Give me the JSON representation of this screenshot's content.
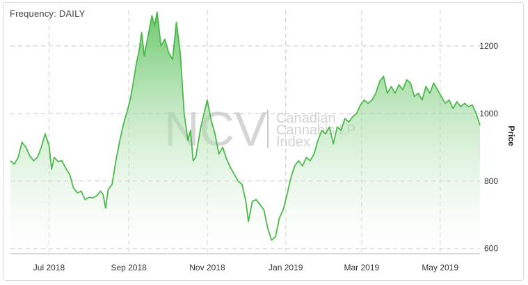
{
  "header": {
    "frequency_label": "Frequency: DAILY"
  },
  "watermark": {
    "logo_text": "NCV",
    "line1": "Canadian",
    "line2": "Cannabis LP",
    "line3": "Index"
  },
  "colors": {
    "line": "#4cb84c",
    "fill_top": "#5cc25c",
    "fill_bottom": "#ffffff",
    "grid": "#c8c8c8"
  },
  "chart_data": {
    "type": "area",
    "ylabel": "Price",
    "ylim": [
      585,
      1305
    ],
    "yticks": [
      600,
      800,
      1000,
      1200
    ],
    "xticks": [
      {
        "date": "2018-07-01",
        "label": "Jul 2018"
      },
      {
        "date": "2018-09-01",
        "label": "Sep 2018"
      },
      {
        "date": "2018-11-01",
        "label": "Nov 2018"
      },
      {
        "date": "2019-01-01",
        "label": "Jan 2019"
      },
      {
        "date": "2019-03-01",
        "label": "Mar 2019"
      },
      {
        "date": "2019-05-01",
        "label": "May 2019"
      }
    ],
    "xlim": [
      "2018-06-01",
      "2019-06-01"
    ],
    "grid": true,
    "series": [
      {
        "points": [
          [
            "2018-06-01",
            860
          ],
          [
            "2018-06-04",
            850
          ],
          [
            "2018-06-07",
            870
          ],
          [
            "2018-06-10",
            915
          ],
          [
            "2018-06-13",
            900
          ],
          [
            "2018-06-16",
            875
          ],
          [
            "2018-06-19",
            860
          ],
          [
            "2018-06-22",
            870
          ],
          [
            "2018-06-25",
            900
          ],
          [
            "2018-06-28",
            940
          ],
          [
            "2018-07-01",
            905
          ],
          [
            "2018-07-03",
            835
          ],
          [
            "2018-07-05",
            870
          ],
          [
            "2018-07-08",
            858
          ],
          [
            "2018-07-11",
            860
          ],
          [
            "2018-07-14",
            838
          ],
          [
            "2018-07-17",
            820
          ],
          [
            "2018-07-20",
            780
          ],
          [
            "2018-07-23",
            765
          ],
          [
            "2018-07-26",
            770
          ],
          [
            "2018-07-29",
            745
          ],
          [
            "2018-08-01",
            752
          ],
          [
            "2018-08-04",
            750
          ],
          [
            "2018-08-07",
            756
          ],
          [
            "2018-08-10",
            770
          ],
          [
            "2018-08-12",
            760
          ],
          [
            "2018-08-14",
            720
          ],
          [
            "2018-08-16",
            775
          ],
          [
            "2018-08-19",
            790
          ],
          [
            "2018-08-22",
            860
          ],
          [
            "2018-08-25",
            920
          ],
          [
            "2018-08-28",
            970
          ],
          [
            "2018-08-31",
            1010
          ],
          [
            "2018-09-02",
            1040
          ],
          [
            "2018-09-04",
            1080
          ],
          [
            "2018-09-07",
            1150
          ],
          [
            "2018-09-09",
            1185
          ],
          [
            "2018-09-11",
            1240
          ],
          [
            "2018-09-13",
            1170
          ],
          [
            "2018-09-15",
            1210
          ],
          [
            "2018-09-17",
            1250
          ],
          [
            "2018-09-19",
            1290
          ],
          [
            "2018-09-21",
            1260
          ],
          [
            "2018-09-23",
            1300
          ],
          [
            "2018-09-26",
            1200
          ],
          [
            "2018-09-29",
            1220
          ],
          [
            "2018-10-02",
            1180
          ],
          [
            "2018-10-05",
            1160
          ],
          [
            "2018-10-08",
            1270
          ],
          [
            "2018-10-11",
            1180
          ],
          [
            "2018-10-14",
            1000
          ],
          [
            "2018-10-17",
            920
          ],
          [
            "2018-10-19",
            950
          ],
          [
            "2018-10-21",
            860
          ],
          [
            "2018-10-23",
            870
          ],
          [
            "2018-10-27",
            960
          ],
          [
            "2018-11-01",
            1040
          ],
          [
            "2018-11-04",
            980
          ],
          [
            "2018-11-07",
            940
          ],
          [
            "2018-11-10",
            880
          ],
          [
            "2018-11-13",
            900
          ],
          [
            "2018-11-16",
            865
          ],
          [
            "2018-11-19",
            840
          ],
          [
            "2018-11-22",
            820
          ],
          [
            "2018-11-25",
            800
          ],
          [
            "2018-11-28",
            790
          ],
          [
            "2018-12-01",
            740
          ],
          [
            "2018-12-03",
            680
          ],
          [
            "2018-12-06",
            740
          ],
          [
            "2018-12-09",
            745
          ],
          [
            "2018-12-12",
            730
          ],
          [
            "2018-12-15",
            715
          ],
          [
            "2018-12-18",
            660
          ],
          [
            "2018-12-21",
            625
          ],
          [
            "2018-12-24",
            635
          ],
          [
            "2018-12-27",
            690
          ],
          [
            "2018-12-30",
            715
          ],
          [
            "2019-01-02",
            760
          ],
          [
            "2019-01-05",
            810
          ],
          [
            "2019-01-08",
            845
          ],
          [
            "2019-01-11",
            860
          ],
          [
            "2019-01-14",
            845
          ],
          [
            "2019-01-17",
            870
          ],
          [
            "2019-01-20",
            860
          ],
          [
            "2019-01-23",
            880
          ],
          [
            "2019-01-26",
            920
          ],
          [
            "2019-01-29",
            950
          ],
          [
            "2019-02-01",
            940
          ],
          [
            "2019-02-04",
            960
          ],
          [
            "2019-02-07",
            910
          ],
          [
            "2019-02-10",
            960
          ],
          [
            "2019-02-13",
            950
          ],
          [
            "2019-02-16",
            985
          ],
          [
            "2019-02-19",
            975
          ],
          [
            "2019-02-22",
            990
          ],
          [
            "2019-02-25",
            1000
          ],
          [
            "2019-02-28",
            1025
          ],
          [
            "2019-03-03",
            1040
          ],
          [
            "2019-03-06",
            1030
          ],
          [
            "2019-03-09",
            1040
          ],
          [
            "2019-03-12",
            1060
          ],
          [
            "2019-03-15",
            1095
          ],
          [
            "2019-03-18",
            1110
          ],
          [
            "2019-03-21",
            1060
          ],
          [
            "2019-03-24",
            1080
          ],
          [
            "2019-03-27",
            1060
          ],
          [
            "2019-03-30",
            1085
          ],
          [
            "2019-04-02",
            1070
          ],
          [
            "2019-04-05",
            1100
          ],
          [
            "2019-04-08",
            1090
          ],
          [
            "2019-04-11",
            1050
          ],
          [
            "2019-04-14",
            1060
          ],
          [
            "2019-04-17",
            1040
          ],
          [
            "2019-04-20",
            1080
          ],
          [
            "2019-04-23",
            1060
          ],
          [
            "2019-04-26",
            1090
          ],
          [
            "2019-04-29",
            1070
          ],
          [
            "2019-05-02",
            1050
          ],
          [
            "2019-05-05",
            1030
          ],
          [
            "2019-05-08",
            1040
          ],
          [
            "2019-05-11",
            1015
          ],
          [
            "2019-05-14",
            1035
          ],
          [
            "2019-05-17",
            1020
          ],
          [
            "2019-05-20",
            1030
          ],
          [
            "2019-05-23",
            1020
          ],
          [
            "2019-05-26",
            1025
          ],
          [
            "2019-05-29",
            1000
          ],
          [
            "2019-06-01",
            965
          ]
        ]
      }
    ]
  }
}
